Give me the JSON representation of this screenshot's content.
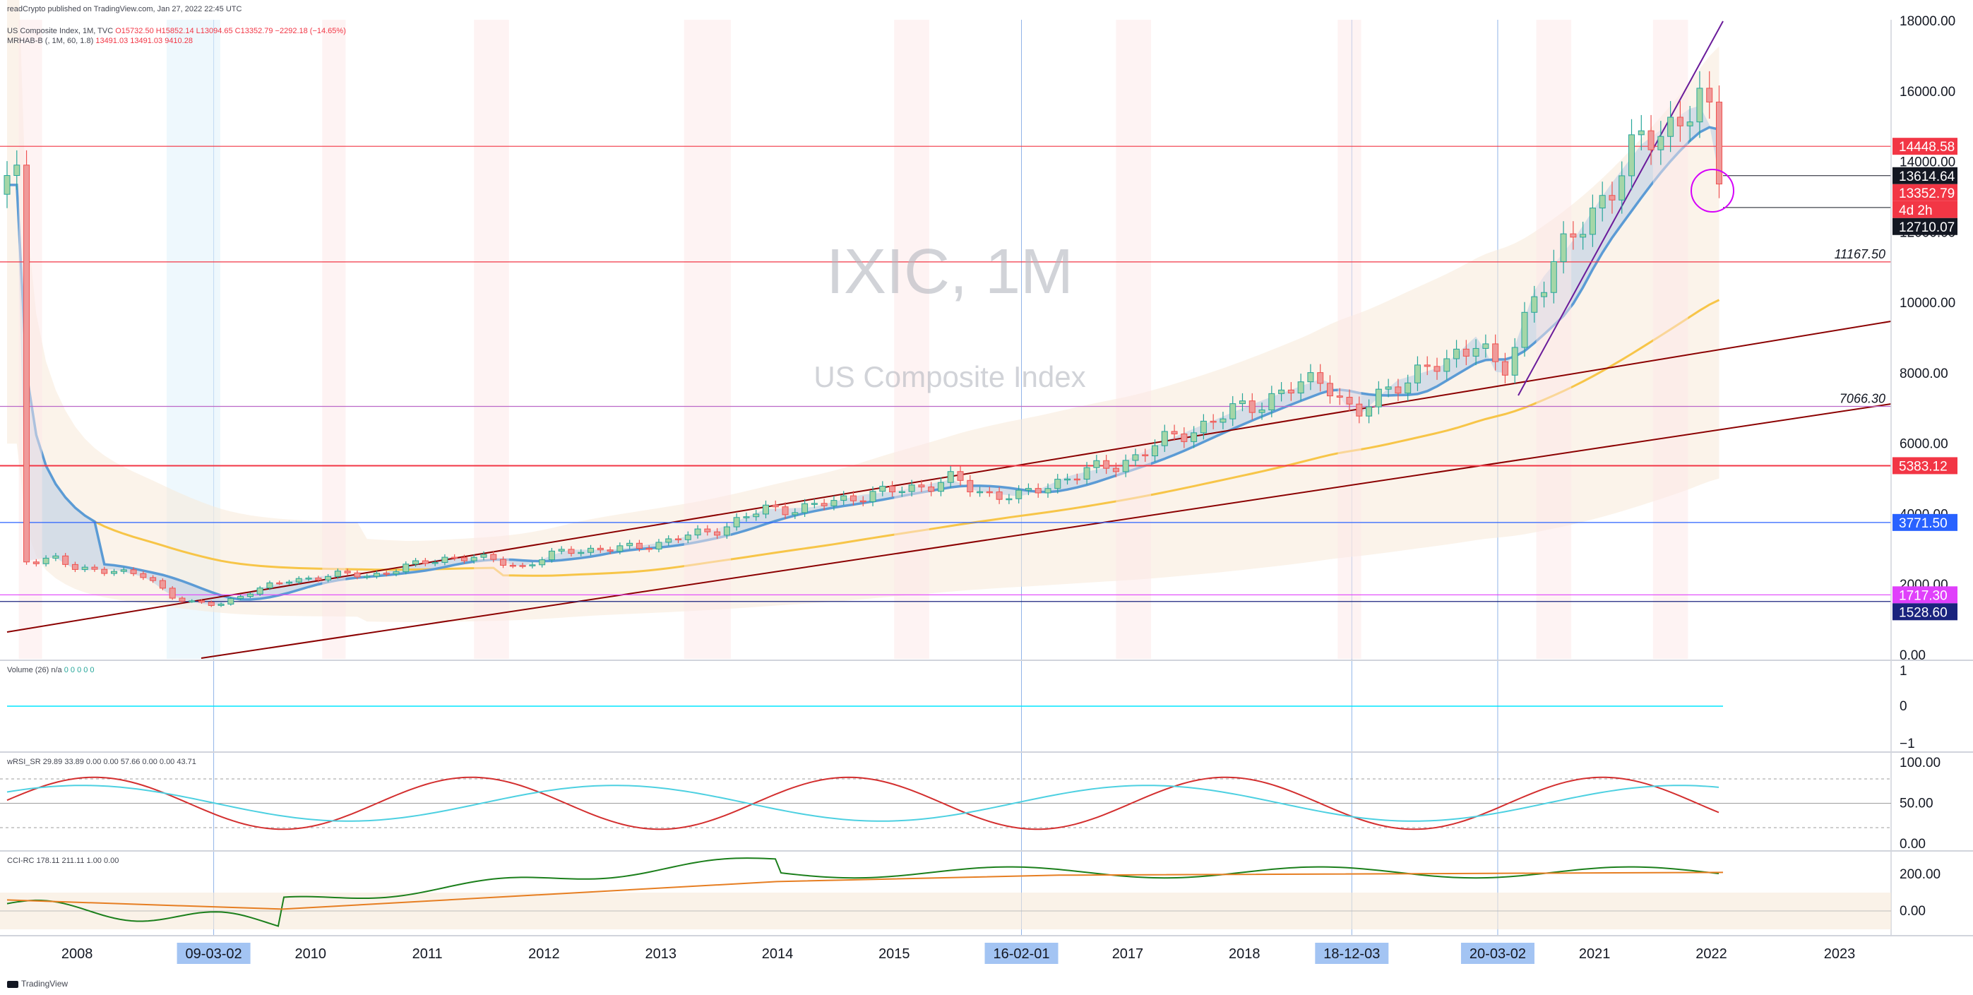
{
  "header": {
    "publisher": "readCrypto published on TradingView.com, Jan 27, 2022 22:45 UTC",
    "symbol_line": "US Composite Index, 1M, TVC",
    "ohlc": "O15732.50 H15852.14 L13094.65 C13352.79 −2292.18 (−14.65%)",
    "indicator": "MRHAB-B (, 1M, 60, 1.8)",
    "indicator_values": "13491.03 13491.03 9410.28"
  },
  "watermark": {
    "ticker": "IXIC, 1M",
    "name": "US Composite Index"
  },
  "footer": {
    "brand": "TradingView"
  },
  "colors": {
    "candle_up": "#26a69a",
    "candle_down": "#ef5350",
    "ma_blue": "#5b9bd5",
    "ma_orange": "#f7c548",
    "band_red": "#fcd5c8",
    "band_blue": "#b7cbe3",
    "trend_line": "#8b0000"
  },
  "chart_data": [
    {
      "type": "candlestick",
      "panel": "main",
      "ylim": [
        0,
        18000
      ],
      "price_ticks": [
        "18000.00",
        "16000.00",
        "14000.00",
        "12000.00",
        "10000.00",
        "8000.00",
        "6000.00",
        "4000.00",
        "2000.00",
        "0.00"
      ],
      "x_labels": [
        "2008",
        "09-03-02",
        "2010",
        "2011",
        "2012",
        "2013",
        "2014",
        "2015",
        "16-02-01",
        "2017",
        "2018",
        "18-12-03",
        "20-03-02",
        "2021",
        "2022",
        "2023"
      ],
      "highlighted_dates": [
        "09-03-02",
        "16-02-01",
        "18-12-03",
        "20-03-02"
      ],
      "horizontal_levels": [
        {
          "label": "14448.58",
          "value": 14448.58,
          "color": "#f23645"
        },
        {
          "label": "13614.64",
          "value": 13614.64,
          "color": "#131722"
        },
        {
          "label": "13352.79",
          "value": 13352.79,
          "color": "#f23645"
        },
        {
          "label": "4d 2h",
          "value": 13352.79,
          "color": "#f23645"
        },
        {
          "label": "12710.07",
          "value": 12710.07,
          "color": "#131722"
        },
        {
          "label": "11167.50",
          "value": 11167.5,
          "color": "#f23645"
        },
        {
          "label": "7066.30",
          "value": 7066.3,
          "color": "#ba68c8"
        },
        {
          "label": "5383.12",
          "value": 5383.12,
          "color": "#f23645"
        },
        {
          "label": "3771.50",
          "value": 3771.5,
          "color": "#2962ff"
        },
        {
          "label": "1717.30",
          "value": 1717.3,
          "color": "#e040fb"
        },
        {
          "label": "1528.60",
          "value": 1528.6,
          "color": "#1a237e"
        }
      ],
      "close_path": [
        [
          2007.5,
          2650
        ],
        [
          2007.8,
          2800
        ],
        [
          2008.0,
          2400
        ],
        [
          2008.3,
          2450
        ],
        [
          2008.6,
          2200
        ],
        [
          2008.8,
          1700
        ],
        [
          2009.0,
          1500
        ],
        [
          2009.2,
          1400
        ],
        [
          2009.5,
          1850
        ],
        [
          2009.8,
          2100
        ],
        [
          2010.2,
          2300
        ],
        [
          2010.5,
          2250
        ],
        [
          2010.8,
          2500
        ],
        [
          2011.2,
          2800
        ],
        [
          2011.6,
          2700
        ],
        [
          2011.8,
          2500
        ],
        [
          2012.2,
          3000
        ],
        [
          2012.6,
          3000
        ],
        [
          2013.0,
          3200
        ],
        [
          2013.5,
          3600
        ],
        [
          2013.9,
          4150
        ],
        [
          2014.3,
          4200
        ],
        [
          2014.7,
          4550
        ],
        [
          2015.0,
          4650
        ],
        [
          2015.5,
          5000
        ],
        [
          2015.7,
          4650
        ],
        [
          2016.1,
          4500
        ],
        [
          2016.5,
          5100
        ],
        [
          2016.9,
          5400
        ],
        [
          2017.4,
          6200
        ],
        [
          2017.9,
          6900
        ],
        [
          2018.2,
          7300
        ],
        [
          2018.7,
          7900
        ],
        [
          2018.95,
          6700
        ],
        [
          2019.3,
          7800
        ],
        [
          2019.7,
          8200
        ],
        [
          2020.0,
          9100
        ],
        [
          2020.2,
          7700
        ],
        [
          2020.5,
          10500
        ],
        [
          2020.8,
          11700
        ],
        [
          2021.1,
          13200
        ],
        [
          2021.4,
          14500
        ],
        [
          2021.8,
          15500
        ],
        [
          2021.95,
          15650
        ],
        [
          2022.08,
          13352.79
        ]
      ]
    },
    {
      "type": "line",
      "panel": "volume",
      "title": "Volume (26)",
      "values_text": "n/a",
      "value_readouts": [
        "0",
        "0",
        "0",
        "0",
        "0"
      ],
      "y_ticks": [
        "1",
        "0",
        "−1"
      ]
    },
    {
      "type": "line",
      "panel": "wRSI_SR",
      "title": "wRSI_SR",
      "readouts": [
        "29.89",
        "33.89",
        "0.00",
        "0.00",
        "57.66",
        "0.00",
        "0.00",
        "43.71"
      ],
      "y_ticks": [
        "100.00",
        "50.00",
        "0.00"
      ]
    },
    {
      "type": "line",
      "panel": "CCI-RC",
      "title": "CCI-RC",
      "readouts": [
        "178.11",
        "211.11",
        "1.00",
        "0.00"
      ],
      "y_ticks": [
        "200.00",
        "0.00"
      ]
    }
  ]
}
